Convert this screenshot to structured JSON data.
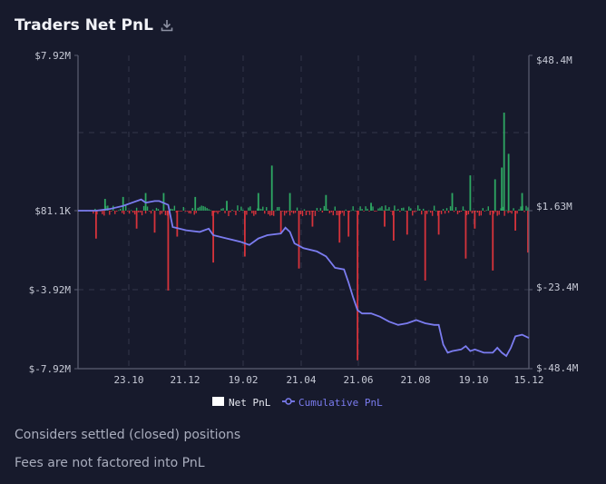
{
  "header": {
    "title": "Traders Net PnL",
    "download_icon": "download-icon"
  },
  "notes": [
    "Considers settled (closed) positions",
    "Fees are not factored into PnL"
  ],
  "colors": {
    "background": "#171a2c",
    "positive_bar": "#2ea863",
    "negative_bar": "#d6333b",
    "cumulative_line": "#7b7cf0",
    "axis": "#5b5f72",
    "grid": "#33374a"
  },
  "chart_data": {
    "type": "bar",
    "title": "Traders Net PnL",
    "x_tick_labels": [
      "23.10",
      "21.12",
      "19.02",
      "21.04",
      "21.06",
      "21.08",
      "19.10",
      "15.12"
    ],
    "y_left": {
      "tick_labels": [
        "$7.92M",
        "$81.1K",
        "$-3.92M",
        "$-7.92M"
      ],
      "ylim": [
        -7.92,
        7.92
      ],
      "units": "$M"
    },
    "y_right": {
      "tick_labels": [
        "$48.4M",
        "$1.63M",
        "$-23.4M",
        "$-48.4M"
      ],
      "ylim": [
        -48.4,
        48.4
      ],
      "units": "$M"
    },
    "grid": true,
    "legend": {
      "placement": "bottom-center",
      "entries": [
        {
          "label": "Net PnL",
          "color": "#ffffff",
          "marker": "square"
        },
        {
          "label": "Cumulative PnL",
          "color": "#7b7cf0",
          "marker": "line-circle"
        }
      ]
    },
    "series": [
      {
        "name": "Net PnL",
        "type": "bar",
        "axis": "left",
        "points_count": 250,
        "spikes": [
          {
            "x": 0.04,
            "y": -1.4
          },
          {
            "x": 0.06,
            "y": 0.6
          },
          {
            "x": 0.1,
            "y": 0.7
          },
          {
            "x": 0.13,
            "y": -0.9
          },
          {
            "x": 0.15,
            "y": 0.9
          },
          {
            "x": 0.17,
            "y": -1.1
          },
          {
            "x": 0.19,
            "y": 0.9
          },
          {
            "x": 0.2,
            "y": -4.0
          },
          {
            "x": 0.22,
            "y": -1.3
          },
          {
            "x": 0.26,
            "y": 0.7
          },
          {
            "x": 0.3,
            "y": -2.6
          },
          {
            "x": 0.33,
            "y": 0.5
          },
          {
            "x": 0.37,
            "y": -2.3
          },
          {
            "x": 0.4,
            "y": 0.9
          },
          {
            "x": 0.43,
            "y": 2.3
          },
          {
            "x": 0.45,
            "y": -1.1
          },
          {
            "x": 0.47,
            "y": 0.9
          },
          {
            "x": 0.49,
            "y": -2.9
          },
          {
            "x": 0.52,
            "y": -0.8
          },
          {
            "x": 0.55,
            "y": 0.8
          },
          {
            "x": 0.58,
            "y": -1.6
          },
          {
            "x": 0.6,
            "y": -1.3
          },
          {
            "x": 0.62,
            "y": -7.5
          },
          {
            "x": 0.65,
            "y": 0.4
          },
          {
            "x": 0.68,
            "y": -0.8
          },
          {
            "x": 0.7,
            "y": -1.5
          },
          {
            "x": 0.73,
            "y": -1.2
          },
          {
            "x": 0.77,
            "y": -3.5
          },
          {
            "x": 0.8,
            "y": -1.2
          },
          {
            "x": 0.83,
            "y": 0.9
          },
          {
            "x": 0.86,
            "y": -2.4
          },
          {
            "x": 0.87,
            "y": 1.8
          },
          {
            "x": 0.88,
            "y": -0.9
          },
          {
            "x": 0.92,
            "y": -3.0
          },
          {
            "x": 0.925,
            "y": 1.6
          },
          {
            "x": 0.94,
            "y": 2.2
          },
          {
            "x": 0.945,
            "y": 5.0
          },
          {
            "x": 0.955,
            "y": 2.9
          },
          {
            "x": 0.97,
            "y": -1.0
          },
          {
            "x": 0.985,
            "y": 0.9
          },
          {
            "x": 0.998,
            "y": -2.1
          }
        ]
      },
      {
        "name": "Cumulative PnL",
        "type": "line",
        "axis": "right",
        "points": [
          [
            0.0,
            0.0
          ],
          [
            0.04,
            0.0
          ],
          [
            0.07,
            0.5
          ],
          [
            0.1,
            1.5
          ],
          [
            0.12,
            2.5
          ],
          [
            0.14,
            3.5
          ],
          [
            0.15,
            2.5
          ],
          [
            0.17,
            3.0
          ],
          [
            0.18,
            3.0
          ],
          [
            0.2,
            1.8
          ],
          [
            0.21,
            -5.0
          ],
          [
            0.24,
            -6.0
          ],
          [
            0.27,
            -6.5
          ],
          [
            0.29,
            -5.5
          ],
          [
            0.3,
            -7.5
          ],
          [
            0.33,
            -8.5
          ],
          [
            0.36,
            -9.5
          ],
          [
            0.38,
            -10.5
          ],
          [
            0.4,
            -8.5
          ],
          [
            0.42,
            -7.5
          ],
          [
            0.45,
            -7.0
          ],
          [
            0.46,
            -5.2
          ],
          [
            0.47,
            -6.5
          ],
          [
            0.48,
            -10.0
          ],
          [
            0.5,
            -11.5
          ],
          [
            0.53,
            -12.5
          ],
          [
            0.55,
            -14.0
          ],
          [
            0.57,
            -17.5
          ],
          [
            0.59,
            -18.0
          ],
          [
            0.6,
            -22.0
          ],
          [
            0.61,
            -26.5
          ],
          [
            0.62,
            -30.5
          ],
          [
            0.63,
            -31.5
          ],
          [
            0.65,
            -31.5
          ],
          [
            0.67,
            -32.5
          ],
          [
            0.69,
            -34.0
          ],
          [
            0.71,
            -35.0
          ],
          [
            0.73,
            -34.5
          ],
          [
            0.75,
            -33.5
          ],
          [
            0.77,
            -34.5
          ],
          [
            0.79,
            -35.0
          ],
          [
            0.8,
            -35.0
          ],
          [
            0.81,
            -41.0
          ],
          [
            0.82,
            -43.5
          ],
          [
            0.83,
            -43.0
          ],
          [
            0.85,
            -42.5
          ],
          [
            0.86,
            -41.5
          ],
          [
            0.87,
            -43.0
          ],
          [
            0.88,
            -42.5
          ],
          [
            0.9,
            -43.5
          ],
          [
            0.92,
            -43.5
          ],
          [
            0.93,
            -42.0
          ],
          [
            0.94,
            -43.5
          ],
          [
            0.95,
            -44.5
          ],
          [
            0.96,
            -42.0
          ],
          [
            0.97,
            -38.5
          ],
          [
            0.985,
            -38.0
          ],
          [
            1.0,
            -39.0
          ]
        ]
      }
    ]
  }
}
